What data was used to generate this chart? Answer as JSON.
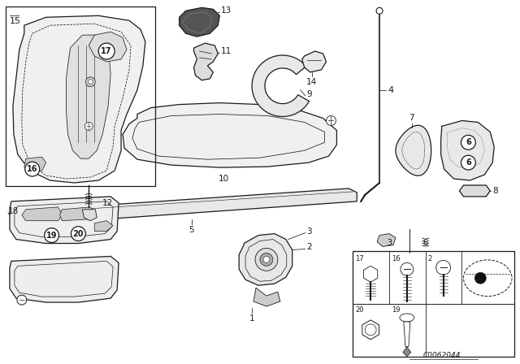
{
  "bg_color": "#ffffff",
  "line_color": "#1a1a1a",
  "text_color": "#1a1a1a",
  "fill_white": "#ffffff",
  "fill_light": "#f5f5f5",
  "diagram_id": "C0062044",
  "fig_width": 6.4,
  "fig_height": 4.48,
  "dpi": 100
}
